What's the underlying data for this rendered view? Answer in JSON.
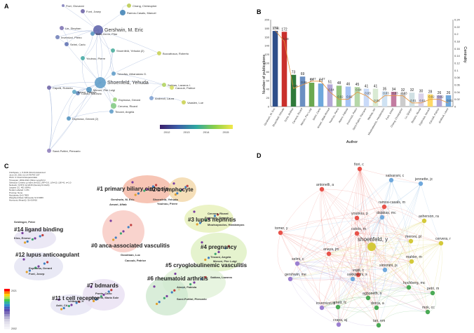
{
  "panels": {
    "A": {
      "label": "A",
      "nodes": [
        {
          "label": "Gershwin, M. Eric",
          "color": "#5b5fa8",
          "r": 7
        },
        {
          "label": "Shoenfeld, Yehuda",
          "color": "#5b9ac7",
          "r": 8
        },
        {
          "label": "Ramos-Casals, Manuel",
          "color": "#3b7fb3",
          "r": 4
        },
        {
          "label": "Font, Josep",
          "color": "#6a5fa3",
          "r": 3
        },
        {
          "label": "Lie, Stephan",
          "color": "#7a6fb0",
          "r": 3
        },
        {
          "label": "Chang, Christopher",
          "color": "#b9c94a",
          "r": 3
        },
        {
          "label": "Fiori, Giovanni",
          "color": "#7e7bb8",
          "r": 2
        },
        {
          "label": "Brito-Zeron, Pilar",
          "color": "#4c8fbd",
          "r": 3
        },
        {
          "label": "Shoenfeld, Yehuda (2)",
          "color": "#44aa99",
          "r": 3
        },
        {
          "label": "Invernizzi, Pietro",
          "color": "#6d7cb6",
          "r": 3
        },
        {
          "label": "Selmi, Carlo",
          "color": "#5a6db0",
          "r": 3
        },
        {
          "label": "Youinou, Pierre",
          "color": "#3fa7a1",
          "r": 3
        },
        {
          "label": "Buccafusca, Roberto",
          "color": "#c7d04d",
          "r": 3
        },
        {
          "label": "Tzioufas, Athanasios G.",
          "color": "#5b9ac7",
          "r": 3
        },
        {
          "label": "Meroni, Pier Luigi",
          "color": "#4c8fbd",
          "r": 4
        },
        {
          "label": "Cervera, Ricard",
          "color": "#7fc97f",
          "r": 4
        },
        {
          "label": "Espinosa, Gerard",
          "color": "#9ad07a",
          "r": 3
        },
        {
          "label": "Capelli, Roberto",
          "color": "#6a5fa3",
          "r": 3
        },
        {
          "label": "Cutolo, Maurizio",
          "color": "#5a7fb5",
          "r": 3
        },
        {
          "label": "Atzeni, Fabiola",
          "color": "#58a4c5",
          "r": 3
        },
        {
          "label": "Sarzi-Puttini, Piercarlo",
          "color": "#8c7ab8",
          "r": 3
        },
        {
          "label": "Sakkas, Lazaros I.",
          "color": "#b0d25a",
          "r": 3
        },
        {
          "label": "Cacoub, Patrice",
          "color": "#d6dd5a",
          "r": 3
        },
        {
          "label": "Andreoli, Laura",
          "color": "#7a9ed0",
          "r": 3
        },
        {
          "label": "Vaaslen, Lue",
          "color": "#c9d04a",
          "r": 3
        },
        {
          "label": "Tincani, Angela",
          "color": "#5b9ac7",
          "r": 3
        },
        {
          "label": "Espinosa, Gerard (2)",
          "color": "#4c8fbd",
          "r": 3
        }
      ],
      "legend": {
        "ticks": [
          "2012",
          "2013",
          "2014",
          "2015"
        ]
      }
    },
    "B": {
      "label": "B",
      "ylabel": "Number of publications",
      "ylabel_right": "Centrality",
      "xlabel": "Author"
    },
    "C": {
      "label": "C",
      "info_lines": [
        "CiteSpace, v. 5.8.R3 (64-bit) Advanced",
        "June 20, 2021 12:14:49 PM CST",
        "WoS: C:\\Users\\citespace\\data",
        "Timespan: 2002-2021 (Slice Length=1)",
        "Selection Criteria: g-index (k=25), LRF=3.0, L/N=10, LBY=5, e=1.0",
        "Network: N=573, E=2015 (Density=0.0123)",
        "Largest CC: 401 (69%)",
        "Nodes Labeled: 1.0%",
        "Pruning: None",
        "Modularity Q=0.7853",
        "Weighted Mean Silhouette S=0.9066",
        "Harmonic Mean(Q, S)=0.8416"
      ],
      "clusters": [
        {
          "label": "#1 primary biliary cirrhosis"
        },
        {
          "label": "#2 b lymphocyte"
        },
        {
          "label": "#3 lupus nephritis"
        },
        {
          "label": "#4 pregnancy"
        },
        {
          "label": "#14 ligand binding"
        },
        {
          "label": "#0 anca-associated vasculitis"
        },
        {
          "label": "#12 lupus anticoagulant"
        },
        {
          "label": "#5 cryoglobulinemic vasculitis"
        },
        {
          "label": "#11 t cell receptor"
        },
        {
          "label": "#7 bdmards"
        },
        {
          "label": "#6 rheumatoid arthritis"
        }
      ],
      "authors": [
        "Gershwin, M. Eric",
        "Ansari, Aftab",
        "Shoenfeld, Yehuda",
        "Youinou, Pierre",
        "Cervera, Ricard",
        "Espinosa, Gerard",
        "Tincani, Angela",
        "Meroni, Pier Luigi",
        "Moutsopoulos, Haralampos",
        "Sakkas, Lazaros",
        "Goodman, Luc",
        "Cacoub, Patrice",
        "Seidinger, Peter",
        "Kiss, Emese",
        "Espinosa, Gerard",
        "Font, Josep",
        "Aoki, CA",
        "Ishibashi, H",
        "Ponte, Carlo",
        "Chimenti, Maria Sole",
        "Atzeni, Fabiola",
        "Sarzi-Puttini, Piercarlo"
      ],
      "legend_years": [
        "2021",
        "2002"
      ]
    },
    "D": {
      "label": "D",
      "nodes": [
        {
          "label": "fiori, c",
          "color": "#e8524a"
        },
        {
          "label": "salvarani, c",
          "color": "#6fa8dc"
        },
        {
          "label": "antonelli, a",
          "color": "#e8524a"
        },
        {
          "label": "jennette, jc",
          "color": "#6fa8dc"
        },
        {
          "label": "ramos-casals, m",
          "color": "#e8524a"
        },
        {
          "label": "youinou, p",
          "color": "#e8524a"
        },
        {
          "label": "dalakas, mc",
          "color": "#6fa8dc"
        },
        {
          "label": "asherson, ra",
          "color": "#d4c93a"
        },
        {
          "label": "cutolo, m",
          "color": "#e8524a"
        },
        {
          "label": "tomer, y",
          "color": "#e8524a"
        },
        {
          "label": "shoenfeld, y",
          "color": "#d4c93a"
        },
        {
          "label": "meroni, pl",
          "color": "#d4c93a"
        },
        {
          "label": "cervera, r",
          "color": "#d4c93a"
        },
        {
          "label": "anaya, jm",
          "color": "#e8524a"
        },
        {
          "label": "mahler, m",
          "color": "#d4c93a"
        },
        {
          "label": "selmi, c",
          "color": "#9b7fd1"
        },
        {
          "label": "simonini, js",
          "color": "#6fa8dc"
        },
        {
          "label": "vojdi, c",
          "color": "#e8524a"
        },
        {
          "label": "sakkouchi, s",
          "color": "#6fa8dc"
        },
        {
          "label": "gershwin, me",
          "color": "#9b7fd1"
        },
        {
          "label": "hochberg, mc",
          "color": "#4aaa55"
        },
        {
          "label": "petri, m",
          "color": "#4aaa55"
        },
        {
          "label": "aghoneth, n",
          "color": "#4aaa55"
        },
        {
          "label": "invernizzi, p",
          "color": "#9b7fd1"
        },
        {
          "label": "arnett, fc",
          "color": "#4aaa55"
        },
        {
          "label": "dorca, a",
          "color": "#4aaa55"
        },
        {
          "label": "mok, cc",
          "color": "#4aaa55"
        },
        {
          "label": "crapa, aj",
          "color": "#9b7fd1"
        },
        {
          "label": "tan, em",
          "color": "#4aaa55"
        }
      ]
    }
  },
  "chart_data": {
    "type": "bar",
    "categories": [
      "Gershwin, M. Eric",
      "Shoenfeld, Yehuda",
      "Doria, Andrea",
      "Cervera, Ricard",
      "Meroni, Pier Luigi",
      "Selmi, Carlo",
      "Ansari, Aftab Ahmed",
      "Youinou, Pierre",
      "Atzeni, Fabiola",
      "Invernizzi, Pietro",
      "Sarzi-Puttini, Piercarlo",
      "Mackay, Ian",
      "Moutsopoulos, Haralampos",
      "Font, Josep",
      "Chang, Christopher",
      "Lu, Qianjin",
      "Bizzaro, Nicola",
      "Espinosa, Gerard",
      "Cacoub, Patrice",
      "Andreoli, Laura"
    ],
    "series": [
      {
        "values": [
          174,
          172,
          73,
          69,
          55,
          53,
          51,
          48,
          46,
          45,
          41,
          41,
          35,
          34,
          32,
          32,
          30,
          28,
          26,
          26
        ],
        "labels": [
          "174",
          "172",
          "73",
          "69",
          "55",
          "53",
          "51",
          "48",
          "46",
          "45",
          "41",
          "41",
          "35",
          "34",
          "32",
          "32",
          "30",
          "28",
          "26",
          "26"
        ]
      },
      {
        "values": [
          0.21,
          0.18,
          0.05,
          0.06,
          0.07,
          0.07,
          0.04,
          0.02,
          0.02,
          0.04,
          0.03,
          0.01,
          0.03,
          0.03,
          0.03,
          0.01,
          0.01,
          0.02,
          0.02,
          0.01
        ],
        "labels": [
          "0.21",
          "0.18",
          "0.05",
          "0.06",
          "0.07",
          "0.07",
          "0.04",
          "0.02",
          "0.02",
          "0.04",
          "0.03",
          "0.01",
          "0.03",
          "0.03",
          "0.03",
          "0.01",
          "0.01",
          "0.02",
          "0.02",
          "0.01"
        ]
      }
    ],
    "bar_colors": [
      "#2e4f8a",
      "#c9302c",
      "#2f7a3a",
      "#6b8fc2",
      "#6aa84f",
      "#6fa8dc",
      "#b4a7d6",
      "#93c47d",
      "#a4c2f4",
      "#b6d7a8",
      "#c9daf8",
      "#d9ead3",
      "#cfe2f3",
      "#c27ba0",
      "#cccccc",
      "#d0e0e3",
      "#d9d2e9",
      "#ffd966",
      "#b4a7d6",
      "#6fa8dc"
    ],
    "line_color": "#e69138",
    "ylim": [
      0,
      200
    ],
    "y2lim": [
      0,
      0.24
    ],
    "yticks": [
      "0",
      "20",
      "40",
      "60",
      "80",
      "100",
      "120",
      "140",
      "160",
      "180",
      "200"
    ],
    "y2ticks": [
      "0",
      "0.02",
      "0.04",
      "0.06",
      "0.08",
      "0.1",
      "0.12",
      "0.14",
      "0.16",
      "0.18",
      "0.2",
      "0.22",
      "0.24"
    ]
  }
}
